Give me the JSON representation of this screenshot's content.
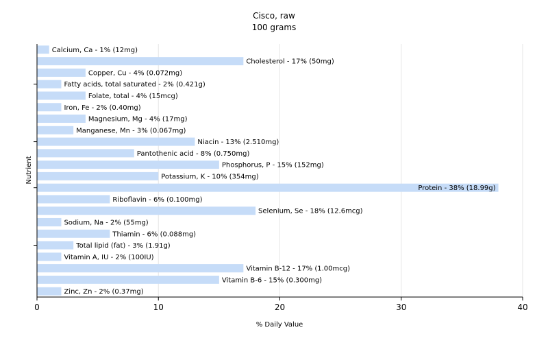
{
  "chart_data": {
    "type": "bar",
    "orientation": "horizontal",
    "title": "Cisco, raw",
    "subtitle": "100 grams",
    "xlabel": "% Daily Value",
    "ylabel": "Nutrient",
    "xlim": [
      0,
      40
    ],
    "xticks": [
      0,
      10,
      20,
      30,
      40
    ],
    "grid": true,
    "bar_color": "#c6dcf8",
    "categories": [
      "Calcium, Ca",
      "Cholesterol",
      "Copper, Cu",
      "Fatty acids, total saturated",
      "Folate, total",
      "Iron, Fe",
      "Magnesium, Mg",
      "Manganese, Mn",
      "Niacin",
      "Pantothenic acid",
      "Phosphorus, P",
      "Potassium, K",
      "Protein",
      "Riboflavin",
      "Selenium, Se",
      "Sodium, Na",
      "Thiamin",
      "Total lipid (fat)",
      "Vitamin A, IU",
      "Vitamin B-12",
      "Vitamin B-6",
      "Zinc, Zn"
    ],
    "values": [
      1,
      17,
      4,
      2,
      4,
      2,
      4,
      3,
      13,
      8,
      15,
      10,
      38,
      6,
      18,
      2,
      6,
      3,
      2,
      17,
      15,
      2
    ],
    "labels": [
      "Calcium, Ca - 1% (12mg)",
      "Cholesterol - 17% (50mg)",
      "Copper, Cu - 4% (0.072mg)",
      "Fatty acids, total saturated - 2% (0.421g)",
      "Folate, total - 4% (15mcg)",
      "Iron, Fe - 2% (0.40mg)",
      "Magnesium, Mg - 4% (17mg)",
      "Manganese, Mn - 3% (0.067mg)",
      "Niacin - 13% (2.510mg)",
      "Pantothenic acid - 8% (0.750mg)",
      "Phosphorus, P - 15% (152mg)",
      "Potassium, K - 10% (354mg)",
      "Protein - 38% (18.99g)",
      "Riboflavin - 6% (0.100mg)",
      "Selenium, Se - 18% (12.6mcg)",
      "Sodium, Na - 2% (55mg)",
      "Thiamin - 6% (0.088mg)",
      "Total lipid (fat) - 3% (1.91g)",
      "Vitamin A, IU - 2% (100IU)",
      "Vitamin B-12 - 17% (1.00mcg)",
      "Vitamin B-6 - 15% (0.300mg)",
      "Zinc, Zn - 2% (0.37mg)"
    ]
  }
}
